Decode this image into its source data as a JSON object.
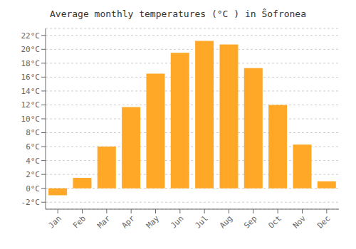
{
  "chart_data": {
    "type": "bar",
    "title": "Average monthly temperatures (°C ) in Ŝofronea",
    "categories": [
      "Jan",
      "Feb",
      "Mar",
      "Apr",
      "May",
      "Jun",
      "Jul",
      "Aug",
      "Sep",
      "Oct",
      "Nov",
      "Dec"
    ],
    "values": [
      -1.0,
      1.5,
      6.0,
      11.7,
      16.5,
      19.5,
      21.2,
      20.7,
      17.3,
      12.0,
      6.3,
      1.0
    ],
    "color": "#FFA726",
    "ylim": [
      -3,
      23
    ],
    "yticks": [
      {
        "value": -2,
        "label": "-2°C"
      },
      {
        "value": 0,
        "label": "0°C"
      },
      {
        "value": 2,
        "label": "2°C"
      },
      {
        "value": 4,
        "label": "4°C"
      },
      {
        "value": 6,
        "label": "6°C"
      },
      {
        "value": 8,
        "label": "8°C"
      },
      {
        "value": 10,
        "label": "10°C"
      },
      {
        "value": 12,
        "label": "12°C"
      },
      {
        "value": 14,
        "label": "14°C"
      },
      {
        "value": 16,
        "label": "16°C"
      },
      {
        "value": 18,
        "label": "18°C"
      },
      {
        "value": 20,
        "label": "20°C"
      },
      {
        "value": 22,
        "label": "22°C"
      }
    ],
    "grid": true
  }
}
